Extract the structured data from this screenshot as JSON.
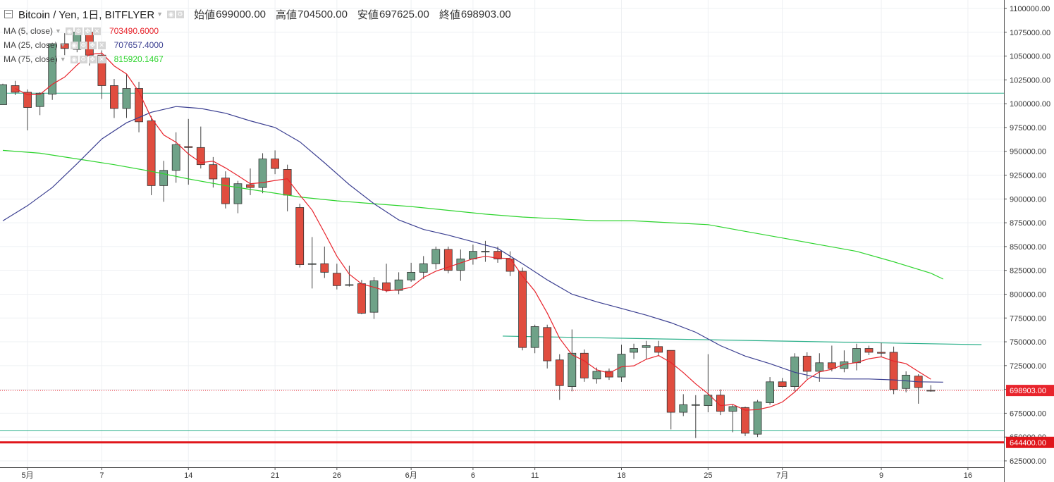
{
  "header": {
    "symbol": "Bitcoin / Yen, 1日, BITFLYER",
    "open_label": "始値",
    "open": "699000.00",
    "high_label": "高値",
    "high": "704500.00",
    "low_label": "安値",
    "low": "697625.00",
    "close_label": "終値",
    "close": "698903.00"
  },
  "indicators": [
    {
      "label": "MA (5, close)",
      "value": "703490.6000",
      "color": "#e8242c"
    },
    {
      "label": "MA (25, close)",
      "value": "707657.4000",
      "color": "#3b3f91"
    },
    {
      "label": "MA (75, close)",
      "value": "815920.1467",
      "color": "#2ed42e"
    }
  ],
  "chart_data": {
    "type": "candlestick",
    "ylim": [
      610000,
      1105000
    ],
    "y_ticks": [
      "625000.00",
      "650000.00",
      "675000.00",
      "700000.00",
      "725000.00",
      "750000.00",
      "775000.00",
      "800000.00",
      "825000.00",
      "850000.00",
      "875000.00",
      "900000.00",
      "925000.00",
      "950000.00",
      "975000.00",
      "1000000.00",
      "1025000.00",
      "1050000.00",
      "1075000.00",
      "1100000.00"
    ],
    "x_ticks": [
      {
        "i": 2,
        "label": "5月"
      },
      {
        "i": 8,
        "label": "7"
      },
      {
        "i": 15,
        "label": "14"
      },
      {
        "i": 22,
        "label": "21"
      },
      {
        "i": 27,
        "label": "26"
      },
      {
        "i": 33,
        "label": "6月"
      },
      {
        "i": 38,
        "label": "6"
      },
      {
        "i": 43,
        "label": "11"
      },
      {
        "i": 50,
        "label": "18"
      },
      {
        "i": 57,
        "label": "25"
      },
      {
        "i": 63,
        "label": "7月"
      },
      {
        "i": 71,
        "label": "9"
      },
      {
        "i": 78,
        "label": "16"
      }
    ],
    "candles": [
      [
        999000,
        1021000,
        999000,
        1020000
      ],
      [
        1019000,
        1024000,
        1009000,
        1012000
      ],
      [
        1012000,
        1015000,
        972000,
        996000
      ],
      [
        997000,
        1012000,
        988000,
        1011000
      ],
      [
        1010000,
        1064000,
        1004000,
        1063000
      ],
      [
        1063000,
        1074000,
        1051000,
        1058000
      ],
      [
        1057000,
        1078000,
        1054000,
        1075000
      ],
      [
        1075000,
        1080000,
        1040000,
        1051000
      ],
      [
        1051000,
        1056000,
        1005000,
        1019000
      ],
      [
        1019000,
        1026000,
        985000,
        995000
      ],
      [
        995000,
        1031000,
        985000,
        1016000
      ],
      [
        1016000,
        1023000,
        970000,
        981000
      ],
      [
        982000,
        987000,
        904000,
        914000
      ],
      [
        914000,
        940000,
        897000,
        930000
      ],
      [
        930000,
        970000,
        917000,
        957000
      ],
      [
        955000,
        984000,
        915000,
        954000
      ],
      [
        954000,
        976000,
        932000,
        936000
      ],
      [
        936000,
        944000,
        912000,
        921000
      ],
      [
        922000,
        929000,
        890000,
        895000
      ],
      [
        895000,
        919000,
        885000,
        916000
      ],
      [
        915000,
        932000,
        904000,
        912000
      ],
      [
        912000,
        948000,
        906000,
        942000
      ],
      [
        942000,
        951000,
        926000,
        932000
      ],
      [
        931000,
        936000,
        887000,
        904000
      ],
      [
        891000,
        895000,
        828000,
        831000
      ],
      [
        832000,
        860000,
        806000,
        832000
      ],
      [
        832000,
        850000,
        817000,
        823000
      ],
      [
        822000,
        832000,
        805000,
        809000
      ],
      [
        810000,
        830000,
        808000,
        810000
      ],
      [
        811000,
        815000,
        779000,
        780000
      ],
      [
        781000,
        818000,
        774000,
        814000
      ],
      [
        812000,
        832000,
        802000,
        804000
      ],
      [
        804000,
        823000,
        800000,
        815000
      ],
      [
        815000,
        833000,
        813000,
        823000
      ],
      [
        823000,
        840000,
        816000,
        832000
      ],
      [
        832000,
        850000,
        826000,
        847000
      ],
      [
        847000,
        850000,
        822000,
        825000
      ],
      [
        825000,
        847000,
        814000,
        837000
      ],
      [
        837000,
        852000,
        831000,
        845000
      ],
      [
        845000,
        856000,
        834000,
        845000
      ],
      [
        845000,
        850000,
        833000,
        837000
      ],
      [
        837000,
        845000,
        819000,
        824000
      ],
      [
        824000,
        828000,
        741000,
        744000
      ],
      [
        744000,
        768000,
        738000,
        766000
      ],
      [
        765000,
        768000,
        722000,
        730000
      ],
      [
        731000,
        737000,
        689000,
        704000
      ],
      [
        703000,
        763000,
        698000,
        738000
      ],
      [
        738000,
        742000,
        708000,
        712000
      ],
      [
        711000,
        723000,
        706000,
        719000
      ],
      [
        719000,
        722000,
        710000,
        713000
      ],
      [
        713000,
        747000,
        708000,
        737000
      ],
      [
        739000,
        748000,
        732000,
        743000
      ],
      [
        744000,
        751000,
        732000,
        746000
      ],
      [
        745000,
        751000,
        735000,
        739000
      ],
      [
        741000,
        741000,
        658000,
        676000
      ],
      [
        676000,
        695000,
        672000,
        684000
      ],
      [
        684000,
        694000,
        649000,
        684000
      ],
      [
        683000,
        737000,
        676000,
        694000
      ],
      [
        694000,
        700000,
        673000,
        677000
      ],
      [
        677000,
        684000,
        655000,
        682000
      ],
      [
        681000,
        682000,
        651000,
        654000
      ],
      [
        653000,
        689000,
        650000,
        687000
      ],
      [
        686000,
        713000,
        684000,
        708000
      ],
      [
        708000,
        712000,
        702000,
        703000
      ],
      [
        703000,
        738000,
        698000,
        734000
      ],
      [
        735000,
        739000,
        711000,
        719000
      ],
      [
        719000,
        738000,
        708000,
        728000
      ],
      [
        728000,
        746000,
        719000,
        722000
      ],
      [
        722000,
        741000,
        718000,
        729000
      ],
      [
        728000,
        748000,
        720000,
        743000
      ],
      [
        743000,
        746000,
        736000,
        739000
      ],
      [
        739000,
        749000,
        734000,
        738000
      ],
      [
        739000,
        745000,
        695000,
        700000
      ],
      [
        701000,
        719000,
        697000,
        715000
      ],
      [
        714000,
        716000,
        685000,
        702000
      ],
      [
        699000,
        704500,
        697625,
        698903
      ]
    ],
    "ma5_tail": [
      703490.6
    ],
    "ma25": [
      [
        0,
        877000
      ],
      [
        2,
        893000
      ],
      [
        4,
        912000
      ],
      [
        6,
        937000
      ],
      [
        8,
        963000
      ],
      [
        10,
        980000
      ],
      [
        12,
        991000
      ],
      [
        14,
        997000
      ],
      [
        16,
        995000
      ],
      [
        18,
        990000
      ],
      [
        20,
        982000
      ],
      [
        22,
        975000
      ],
      [
        24,
        960000
      ],
      [
        26,
        938000
      ],
      [
        28,
        915000
      ],
      [
        30,
        895000
      ],
      [
        32,
        878000
      ],
      [
        34,
        868000
      ],
      [
        36,
        862000
      ],
      [
        38,
        855000
      ],
      [
        40,
        848000
      ],
      [
        42,
        832000
      ],
      [
        44,
        815000
      ],
      [
        46,
        800000
      ],
      [
        48,
        792000
      ],
      [
        50,
        785000
      ],
      [
        52,
        778000
      ],
      [
        54,
        770000
      ],
      [
        56,
        760000
      ],
      [
        58,
        746000
      ],
      [
        60,
        735000
      ],
      [
        62,
        727000
      ],
      [
        64,
        718000
      ],
      [
        66,
        712000
      ],
      [
        68,
        711000
      ],
      [
        70,
        711000
      ],
      [
        72,
        710000
      ],
      [
        74,
        708000
      ],
      [
        76,
        707657
      ]
    ],
    "ma75": [
      [
        0,
        951000
      ],
      [
        3,
        948000
      ],
      [
        6,
        942000
      ],
      [
        9,
        936000
      ],
      [
        12,
        929000
      ],
      [
        15,
        921000
      ],
      [
        18,
        914000
      ],
      [
        21,
        908000
      ],
      [
        24,
        902000
      ],
      [
        27,
        898000
      ],
      [
        30,
        895000
      ],
      [
        33,
        892000
      ],
      [
        36,
        888000
      ],
      [
        39,
        884000
      ],
      [
        42,
        881000
      ],
      [
        45,
        879000
      ],
      [
        48,
        877000
      ],
      [
        51,
        877000
      ],
      [
        54,
        875000
      ],
      [
        57,
        873000
      ],
      [
        60,
        866000
      ],
      [
        63,
        859000
      ],
      [
        66,
        852000
      ],
      [
        69,
        845000
      ],
      [
        72,
        834000
      ],
      [
        75,
        822000
      ],
      [
        76,
        815920
      ]
    ],
    "hlines": [
      {
        "y": 1011000,
        "color": "#2bb08a",
        "width": 1
      },
      {
        "y": 657000,
        "color": "#2bb08a",
        "width": 1
      },
      {
        "y": 644400,
        "color": "#e0161b",
        "width": 3
      }
    ],
    "trendline": {
      "x1": 40.4,
      "y1": 756000,
      "x2": 79.1,
      "y2": 747000,
      "color": "#2bb08a"
    },
    "price_labels": [
      {
        "y": 698903,
        "text": "698903.00",
        "color": "#e8242c"
      },
      {
        "y": 644400,
        "text": "644400.00",
        "color": "#e0161b"
      }
    ],
    "colors": {
      "up": "#6fa288",
      "down": "#e04d3f",
      "grid": "#eef0f3",
      "axis_text": "#333333"
    }
  }
}
